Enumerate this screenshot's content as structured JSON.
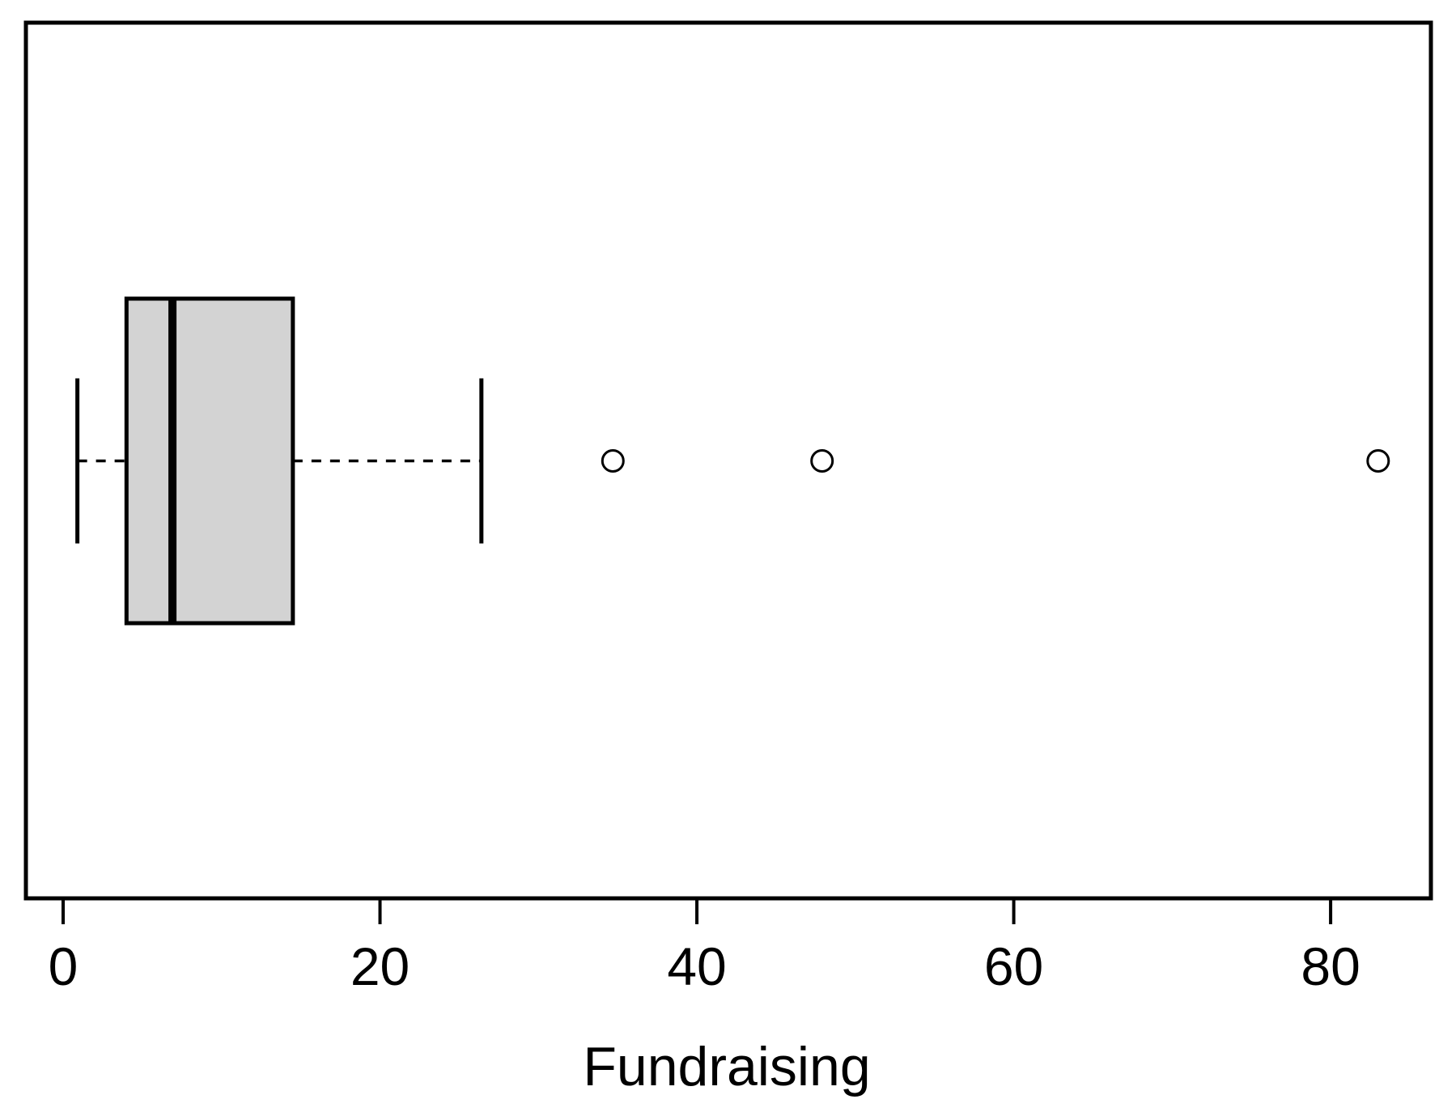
{
  "chart_data": {
    "type": "boxplot",
    "orientation": "horizontal",
    "title": "",
    "xlabel": "Fundraising",
    "ylabel": "",
    "x_ticks": [
      0,
      20,
      40,
      60,
      80
    ],
    "xlim": [
      -2.35,
      86.33
    ],
    "grid": false,
    "legend": null,
    "series": [
      {
        "name": "Fundraising",
        "whisker_low": 0.9,
        "q1": 4.0,
        "median": 6.9,
        "q3": 14.5,
        "whisker_high": 26.4,
        "outliers": [
          34.7,
          47.9,
          83.0
        ]
      }
    ],
    "colors": {
      "box_fill": "#d3d3d3",
      "stroke": "#000000",
      "background": "#ffffff"
    }
  }
}
